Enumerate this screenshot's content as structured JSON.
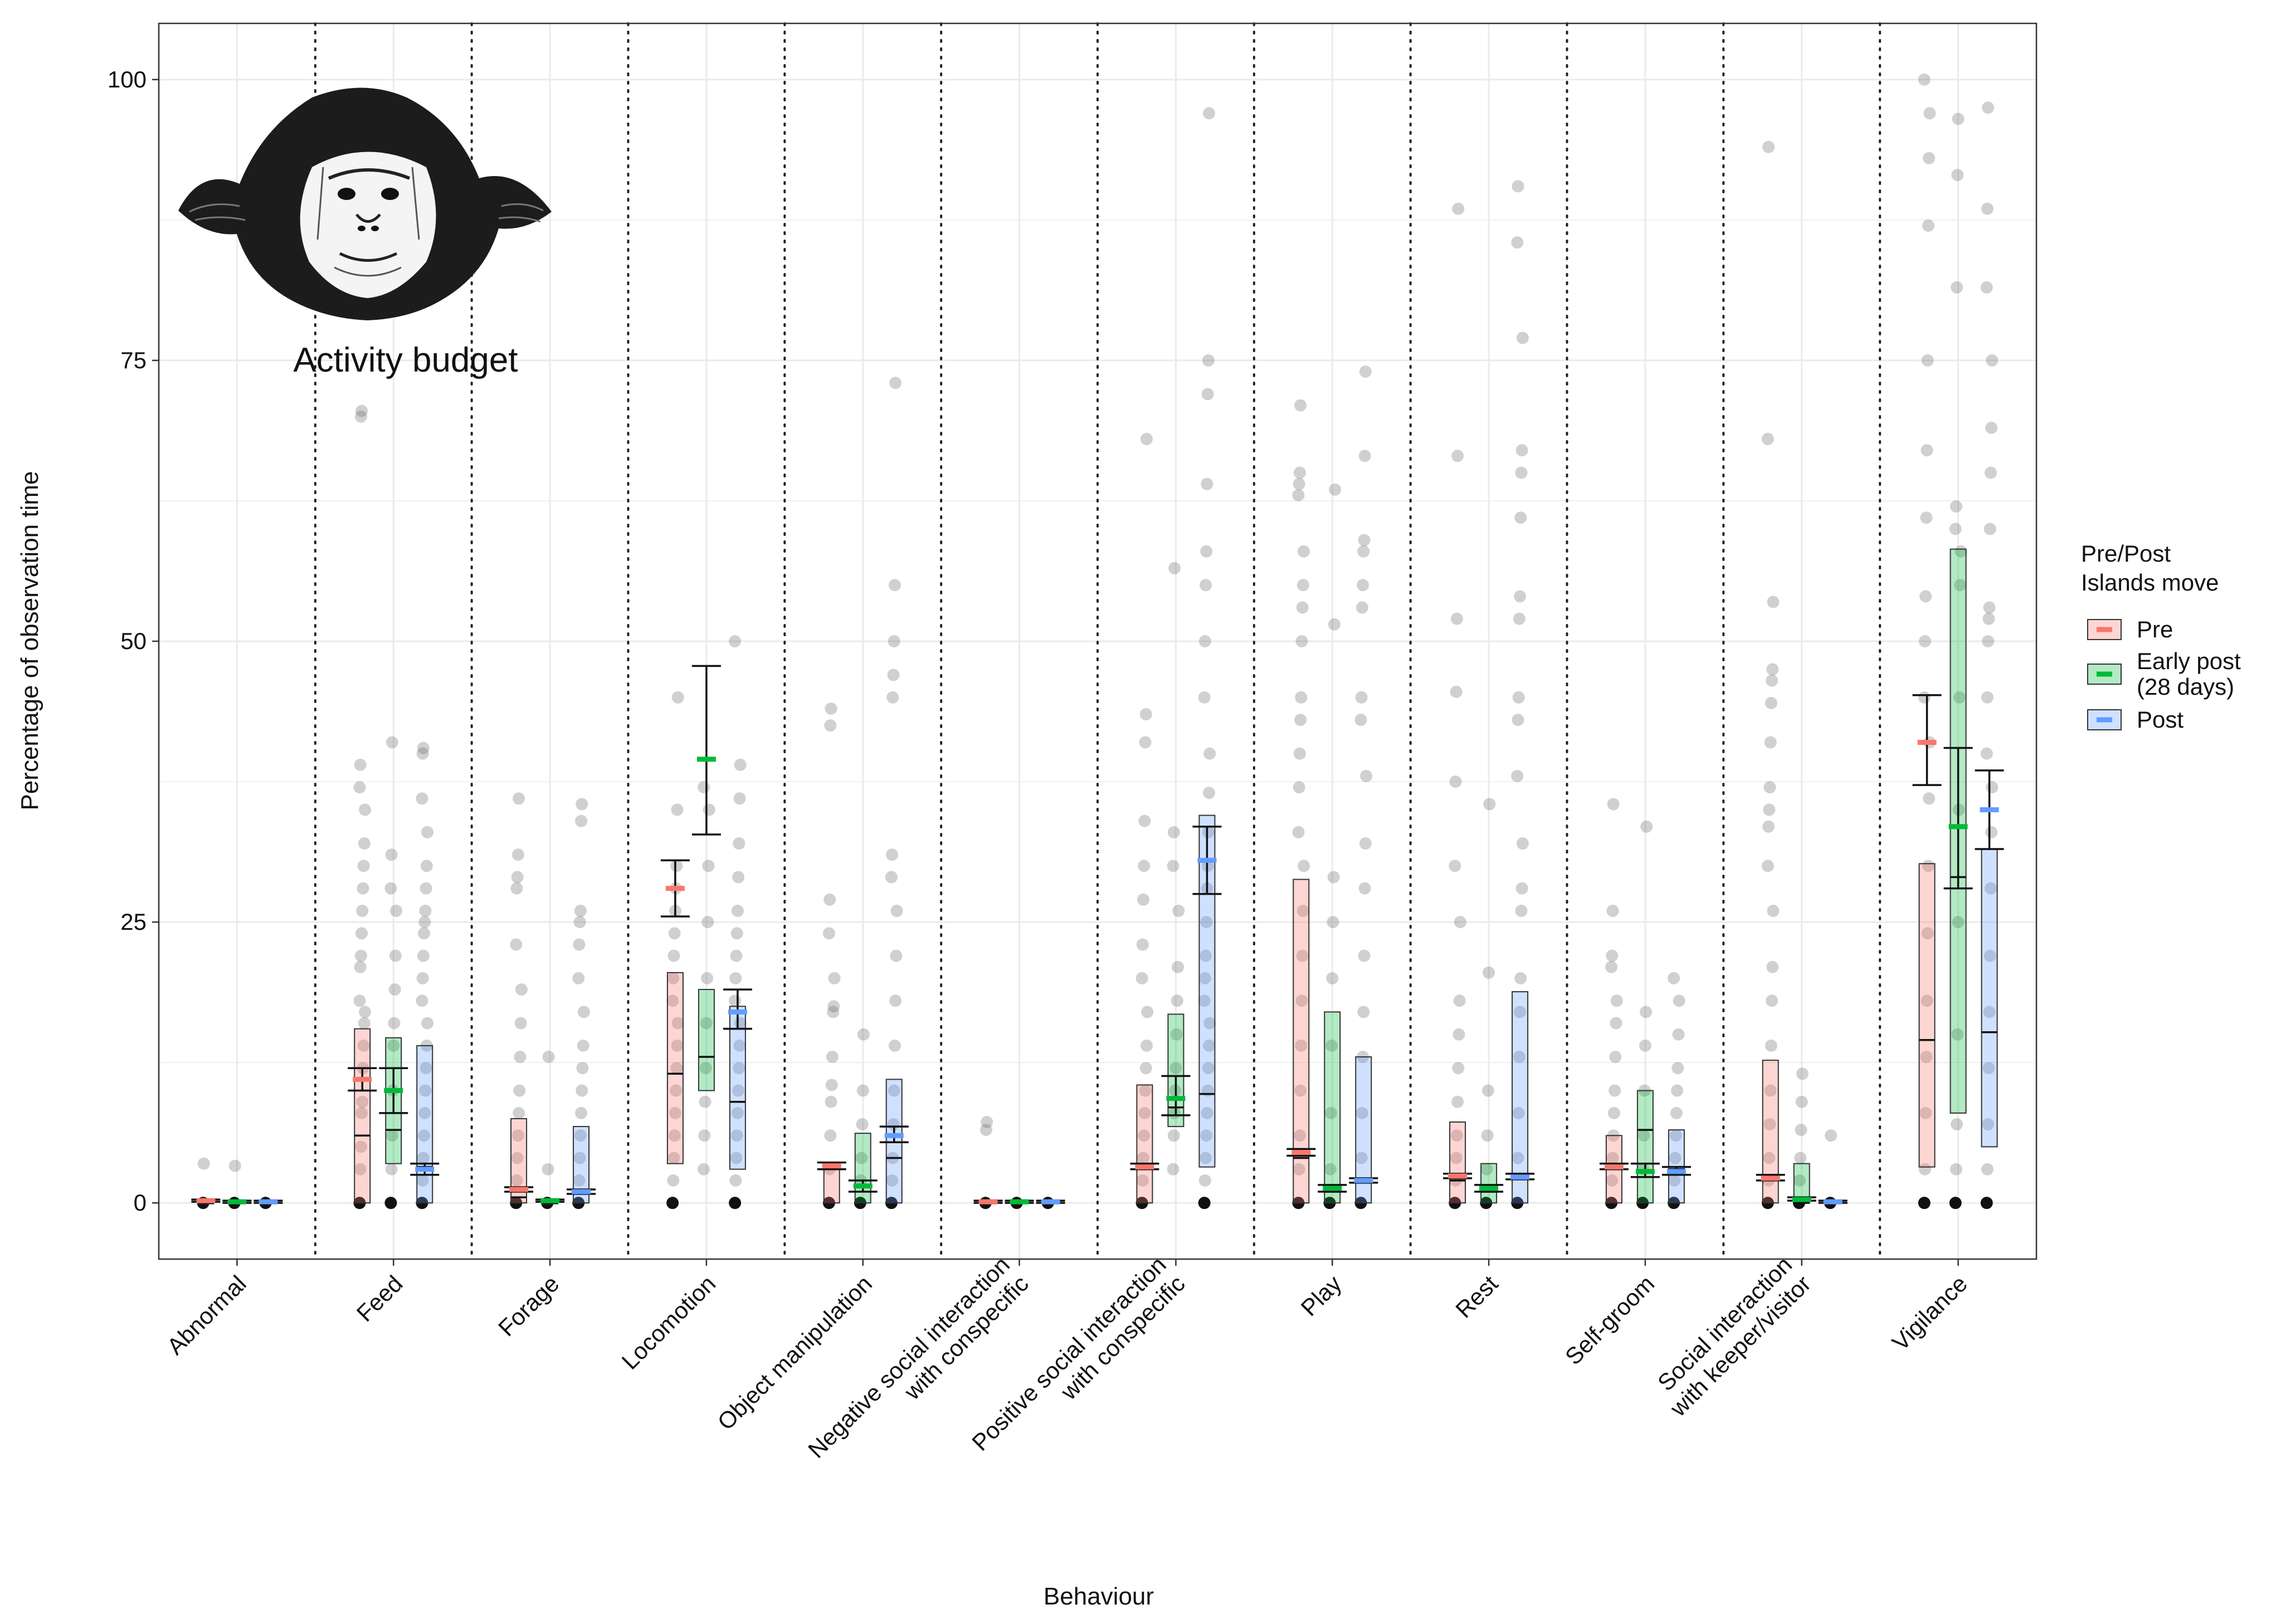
{
  "chart_data": {
    "type": "boxplot",
    "title": "",
    "inset_title": "Activity budget",
    "xlabel": "Behaviour",
    "ylabel": "Percentage of observation time",
    "ylim": [
      -5,
      105
    ],
    "yticks": [
      0,
      25,
      50,
      75,
      100
    ],
    "grid": true,
    "legend": {
      "title_lines": [
        "Pre/Post",
        "Islands move"
      ],
      "placement": "right",
      "items": [
        {
          "lines": [
            "Pre"
          ],
          "color": "#F8766D"
        },
        {
          "lines": [
            "Early post",
            "(28 days)"
          ],
          "color": "#00BA38"
        },
        {
          "lines": [
            "Post"
          ],
          "color": "#619CFF"
        }
      ]
    },
    "categories": [
      [
        "Abnormal"
      ],
      [
        "Feed"
      ],
      [
        "Forage"
      ],
      [
        "Locomotion"
      ],
      [
        "Object manipulation"
      ],
      [
        "Negative social interaction",
        "with conspecific"
      ],
      [
        "Positive social interaction",
        "with conspecific"
      ],
      [
        "Play"
      ],
      [
        "Rest"
      ],
      [
        "Self-groom"
      ],
      [
        "Social interaction",
        "with keeper/visitor"
      ],
      [
        "Vigilance"
      ]
    ],
    "groups": [
      {
        "name": "Pre",
        "color": "#F8766D"
      },
      {
        "name": "Early post (28 days)",
        "color": "#00BA38"
      },
      {
        "name": "Post",
        "color": "#619CFF"
      }
    ],
    "boxes": [
      [
        {
          "q1": 0,
          "median": 0,
          "q3": 0,
          "mean": 0.2,
          "ci": [
            0.1,
            0.3
          ],
          "points": [
            0,
            3.5
          ]
        },
        {
          "q1": 0,
          "median": 0,
          "q3": 0,
          "mean": 0.1,
          "ci": [
            0.0,
            0.2
          ],
          "points": [
            0,
            3.3
          ]
        },
        {
          "q1": 0,
          "median": 0,
          "q3": 0,
          "mean": 0.1,
          "ci": [
            0.0,
            0.2
          ],
          "points": [
            0
          ]
        }
      ],
      [
        {
          "q1": 0,
          "median": 6,
          "q3": 15.5,
          "mean": 11,
          "ci": [
            10,
            12
          ],
          "points": [
            0,
            3,
            5,
            8,
            9,
            12,
            14,
            16,
            17,
            18,
            21,
            22,
            24,
            26,
            28,
            30,
            32,
            35,
            37,
            39,
            70,
            70.5
          ]
        },
        {
          "q1": 3.5,
          "median": 6.5,
          "q3": 14.7,
          "mean": 10,
          "ci": [
            8,
            12
          ],
          "points": [
            0,
            3,
            6,
            10,
            14,
            16,
            19,
            22,
            26,
            28,
            31,
            41
          ]
        },
        {
          "q1": 0,
          "median": 3.2,
          "q3": 14,
          "mean": 3,
          "ci": [
            2.5,
            3.5
          ],
          "points": [
            0,
            2,
            4,
            6,
            8,
            10,
            12,
            14,
            16,
            18,
            20,
            22,
            24,
            25,
            26,
            28,
            30,
            33,
            36,
            40,
            40.5
          ]
        }
      ],
      [
        {
          "q1": 0,
          "median": 0.5,
          "q3": 7.5,
          "mean": 1.2,
          "ci": [
            1.0,
            1.4
          ],
          "points": [
            0,
            2,
            4,
            6,
            8,
            10,
            13,
            16,
            19,
            23,
            28,
            29,
            31,
            36
          ]
        },
        {
          "q1": 0,
          "median": 0,
          "q3": 0,
          "mean": 0.2,
          "ci": [
            0.1,
            0.3
          ],
          "points": [
            0,
            3,
            13
          ]
        },
        {
          "q1": 0,
          "median": 1,
          "q3": 6.8,
          "mean": 1,
          "ci": [
            0.8,
            1.2
          ],
          "points": [
            0,
            2,
            4,
            6,
            8,
            10,
            12,
            14,
            17,
            20,
            23,
            25,
            26,
            34,
            35.5
          ]
        }
      ],
      [
        {
          "q1": 3.5,
          "median": 11.5,
          "q3": 20.5,
          "mean": 28,
          "ci": [
            25.5,
            30.5
          ],
          "points": [
            0,
            2,
            4,
            6,
            8,
            10,
            12,
            14,
            16,
            18,
            20,
            22,
            24,
            26,
            28,
            30,
            35,
            45
          ]
        },
        {
          "q1": 10,
          "median": 13,
          "q3": 19,
          "mean": 39.5,
          "ci": [
            32.8,
            47.8
          ],
          "points": [
            3,
            6,
            9,
            12,
            16,
            20,
            25,
            30,
            35,
            37
          ]
        },
        {
          "q1": 3,
          "median": 9,
          "q3": 17.5,
          "mean": 17,
          "ci": [
            15.5,
            19
          ],
          "points": [
            0,
            2,
            4,
            6,
            8,
            10,
            12,
            14,
            16,
            18,
            20,
            22,
            24,
            26,
            29,
            32,
            36,
            39,
            50
          ]
        }
      ],
      [
        {
          "q1": 0,
          "median": 3,
          "q3": 3.5,
          "mean": 3.3,
          "ci": [
            3.0,
            3.6
          ],
          "points": [
            0,
            3,
            6,
            9,
            10.5,
            13,
            17,
            17.5,
            20,
            24,
            27,
            42.5,
            44
          ]
        },
        {
          "q1": 0,
          "median": 1.5,
          "q3": 6.2,
          "mean": 1.5,
          "ci": [
            1.0,
            2.0
          ],
          "points": [
            0,
            2,
            4,
            7,
            10,
            15
          ]
        },
        {
          "q1": 0,
          "median": 4,
          "q3": 11,
          "mean": 6,
          "ci": [
            5.4,
            6.8
          ],
          "points": [
            0,
            2,
            4,
            7,
            10,
            14,
            18,
            22,
            26,
            29,
            31,
            45,
            47,
            50,
            55,
            73
          ]
        }
      ],
      [
        {
          "q1": 0,
          "median": 0,
          "q3": 0,
          "mean": 0.1,
          "ci": [
            0.0,
            0.2
          ],
          "points": [
            0,
            6.5,
            7.2
          ]
        },
        {
          "q1": 0,
          "median": 0,
          "q3": 0,
          "mean": 0.1,
          "ci": [
            0.0,
            0.2
          ],
          "points": [
            0
          ]
        },
        {
          "q1": 0,
          "median": 0,
          "q3": 0,
          "mean": 0.1,
          "ci": [
            0.0,
            0.2
          ],
          "points": [
            0
          ]
        }
      ],
      [
        {
          "q1": 0,
          "median": 3,
          "q3": 10.5,
          "mean": 3.2,
          "ci": [
            3.0,
            3.5
          ],
          "points": [
            0,
            2,
            4,
            6,
            8,
            10,
            12,
            14,
            17,
            20,
            23,
            27,
            30,
            34,
            41,
            43.5,
            68
          ]
        },
        {
          "q1": 6.8,
          "median": 8.5,
          "q3": 16.8,
          "mean": 9.3,
          "ci": [
            7.8,
            11.3
          ],
          "points": [
            3,
            6,
            8,
            10,
            12,
            15,
            18,
            21,
            26,
            30,
            33,
            56.5
          ]
        },
        {
          "q1": 3.2,
          "median": 9.7,
          "q3": 34.5,
          "mean": 30.5,
          "ci": [
            27.5,
            33.5
          ],
          "points": [
            0,
            2,
            4,
            6,
            8,
            10,
            12,
            14,
            16,
            18,
            20,
            22,
            25,
            28,
            30,
            33,
            36.5,
            40,
            45,
            50,
            55,
            58,
            64,
            72,
            75,
            97
          ]
        }
      ],
      [
        {
          "q1": 0,
          "median": 4,
          "q3": 28.8,
          "mean": 4.5,
          "ci": [
            4.2,
            4.8
          ],
          "points": [
            0,
            3,
            6,
            10,
            14,
            18,
            22,
            26,
            30,
            33,
            37,
            40,
            43,
            45,
            50,
            53,
            55,
            58,
            63,
            64,
            65,
            71
          ]
        },
        {
          "q1": 0,
          "median": 1,
          "q3": 17,
          "mean": 1.3,
          "ci": [
            1.0,
            1.6
          ],
          "points": [
            0,
            3,
            8,
            14,
            20,
            25,
            29,
            51.5,
            63.5
          ]
        },
        {
          "q1": 0,
          "median": 2,
          "q3": 13,
          "mean": 2,
          "ci": [
            1.8,
            2.2
          ],
          "points": [
            0,
            4,
            8,
            13,
            17,
            22,
            28,
            32,
            38,
            43,
            45,
            53,
            55,
            58,
            59,
            66.5,
            74
          ]
        }
      ],
      [
        {
          "q1": 0,
          "median": 2,
          "q3": 7.2,
          "mean": 2.4,
          "ci": [
            2.2,
            2.6
          ],
          "points": [
            0,
            2,
            4,
            6,
            9,
            12,
            15,
            18,
            25,
            30,
            37.5,
            45.5,
            52,
            66.5,
            88.5
          ]
        },
        {
          "q1": 0,
          "median": 1,
          "q3": 3.5,
          "mean": 1.3,
          "ci": [
            1.0,
            1.6
          ],
          "points": [
            0,
            3,
            6,
            10,
            20.5,
            35.5
          ]
        },
        {
          "q1": 0,
          "median": 2.2,
          "q3": 18.8,
          "mean": 2.3,
          "ci": [
            2.1,
            2.6
          ],
          "points": [
            0,
            4,
            8,
            13,
            17,
            20,
            26,
            28,
            32,
            38,
            43,
            45,
            52,
            54,
            61,
            65,
            67,
            77,
            85.5,
            90.5
          ]
        }
      ],
      [
        {
          "q1": 0,
          "median": 3,
          "q3": 6,
          "mean": 3.2,
          "ci": [
            3.0,
            3.5
          ],
          "points": [
            0,
            2,
            4,
            6,
            8,
            10,
            13,
            16,
            18,
            21,
            22,
            26,
            35.5
          ]
        },
        {
          "q1": 0,
          "median": 6.5,
          "q3": 10,
          "mean": 2.8,
          "ci": [
            2.3,
            3.5
          ],
          "points": [
            0,
            3,
            6,
            10,
            14,
            17,
            33.5
          ]
        },
        {
          "q1": 0,
          "median": 3,
          "q3": 6.5,
          "mean": 2.8,
          "ci": [
            2.5,
            3.2
          ],
          "points": [
            0,
            2,
            4,
            6,
            8,
            10,
            12,
            15,
            18,
            20
          ]
        }
      ],
      [
        {
          "q1": 0,
          "median": 2.5,
          "q3": 12.7,
          "mean": 2.2,
          "ci": [
            2.0,
            2.5
          ],
          "points": [
            0,
            2,
            4,
            7,
            10,
            14,
            18,
            21,
            26,
            30,
            33.5,
            35,
            37,
            41,
            44.5,
            46.5,
            47.5,
            53.5,
            68,
            94
          ]
        },
        {
          "q1": 0,
          "median": 0,
          "q3": 3.5,
          "mean": 0.3,
          "ci": [
            0.2,
            0.5
          ],
          "points": [
            0,
            2,
            4,
            6.5,
            9,
            11.5
          ]
        },
        {
          "q1": 0,
          "median": 0,
          "q3": 0,
          "mean": 0.1,
          "ci": [
            0.0,
            0.2
          ],
          "points": [
            0,
            6
          ]
        }
      ],
      [
        {
          "q1": 3.2,
          "median": 14.5,
          "q3": 30.2,
          "mean": 41,
          "ci": [
            37.2,
            45.2
          ],
          "points": [
            0,
            3,
            8,
            13,
            18,
            24,
            30,
            36,
            41,
            45,
            50,
            54,
            61,
            67,
            75,
            87,
            93,
            97,
            100
          ]
        },
        {
          "q1": 8,
          "median": 29,
          "q3": 58.2,
          "mean": 33.5,
          "ci": [
            28,
            40.5
          ],
          "points": [
            0,
            3,
            7,
            15,
            25,
            35,
            45,
            55,
            58,
            60,
            62,
            81.5,
            91.5,
            96.5
          ]
        },
        {
          "q1": 5,
          "median": 15.2,
          "q3": 31.5,
          "mean": 35,
          "ci": [
            31.5,
            38.5
          ],
          "points": [
            0,
            3,
            7,
            12,
            17,
            22,
            28,
            33,
            37,
            40,
            45,
            50,
            52,
            53,
            60,
            65,
            69,
            75,
            81.5,
            88.5,
            97.5
          ]
        }
      ]
    ]
  }
}
